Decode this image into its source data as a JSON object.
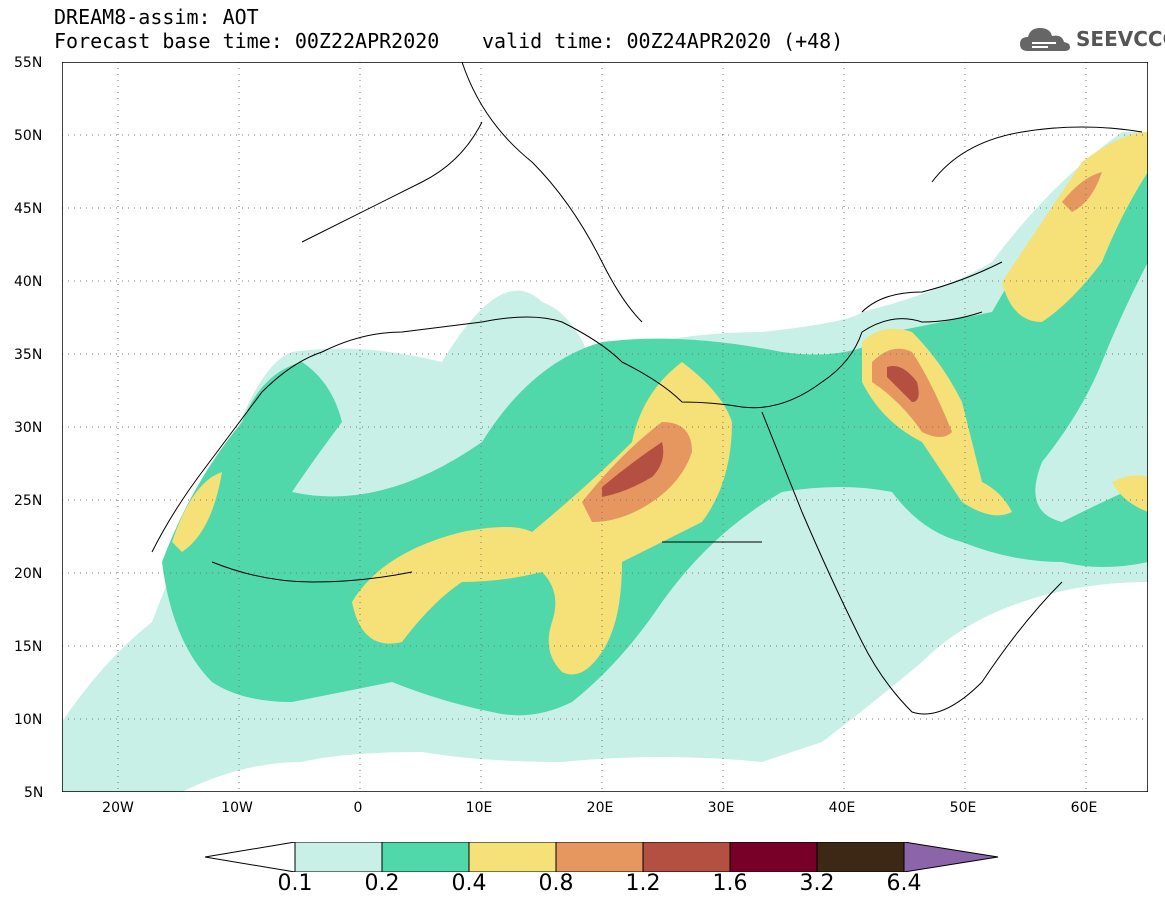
{
  "header": {
    "line1": "DREAM8-assim: AOT",
    "line2": "Forecast base time: 00Z22APR2020",
    "line3": "valid time: 00Z24APR2020 (+48)"
  },
  "logo": {
    "text": "SEEVCCC",
    "icon": "cloud-icon"
  },
  "map": {
    "lat_labels": [
      "55N",
      "50N",
      "45N",
      "40N",
      "35N",
      "30N",
      "25N",
      "20N",
      "15N",
      "10N",
      "5N"
    ],
    "lon_labels": [
      "20W",
      "10W",
      "0",
      "10E",
      "20E",
      "30E",
      "40E",
      "50E",
      "60E"
    ],
    "lat_range": [
      5,
      55
    ],
    "lon_range": [
      -25,
      65
    ],
    "grid": "dotted"
  },
  "colorbar": {
    "labels": [
      "0.1",
      "0.2",
      "0.4",
      "0.8",
      "1.2",
      "1.6",
      "3.2",
      "6.4"
    ],
    "colors": [
      "#ffffff",
      "#c8f0e6",
      "#50d7aa",
      "#f5e178",
      "#e6965f",
      "#b45041",
      "#780028",
      "#3c2814",
      "#8c64aa"
    ]
  }
}
